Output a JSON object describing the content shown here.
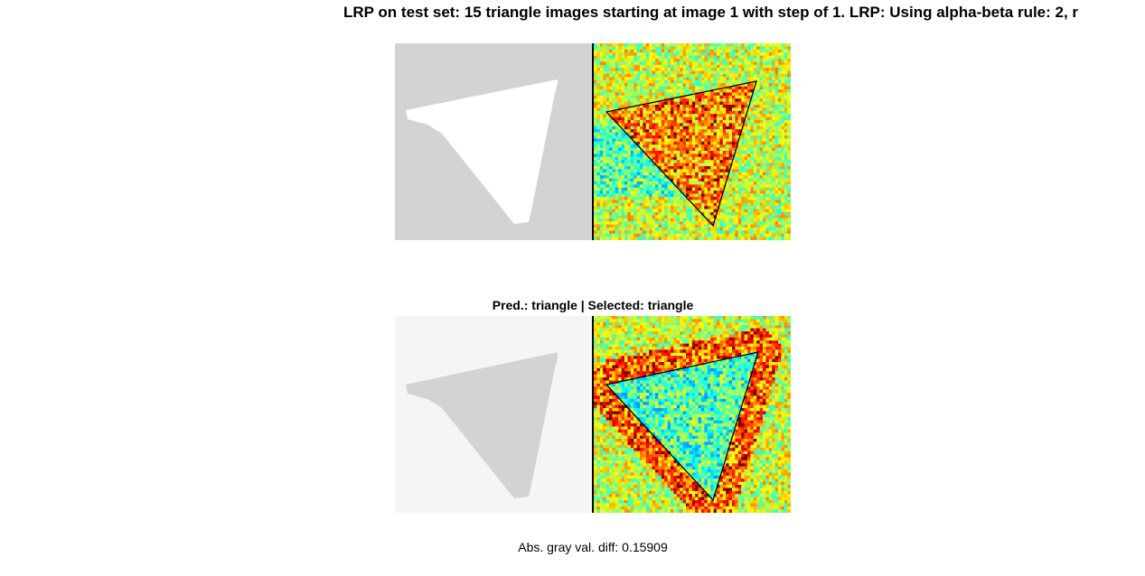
{
  "figure": {
    "title": "LRP on test set: 15 triangle images starting at image 1 with step of 1. LRP: Using alpha-beta rule: 2, r",
    "subtitle": "Pred.: triangle | Selected: triangle",
    "caption": "Abs. gray val. diff: 0.15909"
  },
  "colors": {
    "background": "#ffffff",
    "image_bg_top": "#d3d3d3",
    "shape_top": "#ffffff",
    "image_bg_bottom": "#f5f5f5",
    "shape_bottom": "#d3d3d3",
    "divider": "#000000",
    "heatmap_outline": "#000000"
  },
  "panels": [
    {
      "id": "top",
      "input_image": {
        "background": "light-gray",
        "shape": "triangle",
        "shape_color": "white"
      },
      "heatmap": {
        "colormap": "jet",
        "shape": "triangle",
        "relevance": "positive inside triangle (red/orange clusters)"
      }
    },
    {
      "id": "bottom",
      "input_image": {
        "background": "near-white",
        "shape": "triangle",
        "shape_color": "light-gray"
      },
      "heatmap": {
        "colormap": "jet",
        "shape": "triangle",
        "relevance": "positive outside triangle edges, neutral inside"
      }
    }
  ]
}
